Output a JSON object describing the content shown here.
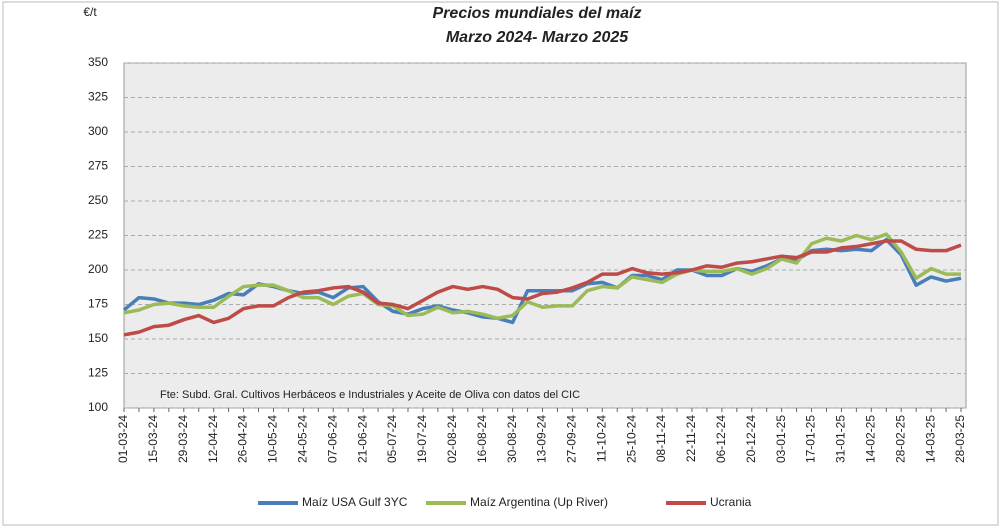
{
  "chart_data": {
    "type": "line",
    "title": "Precios mundiales del maíz",
    "subtitle": "Marzo 2024- Marzo 2025",
    "y_label": "€/t",
    "annotation": "Fte: Subd. Gral. Cultivos Herbáceos e Industriales y Aceite de Oliva con datos del CIC",
    "categories": [
      "01-03-24",
      null,
      "15-03-24",
      null,
      "29-03-24",
      null,
      "12-04-24",
      null,
      "26-04-24",
      null,
      "10-05-24",
      null,
      "24-05-24",
      null,
      "07-06-24",
      null,
      "21-06-24",
      null,
      "05-07-24",
      null,
      "19-07-24",
      null,
      "02-08-24",
      null,
      "16-08-24",
      null,
      "30-08-24",
      null,
      "13-09-24",
      null,
      "27-09-24",
      null,
      "11-10-24",
      null,
      "25-10-24",
      null,
      "08-11-24",
      null,
      "22-11-24",
      null,
      "06-12-24",
      null,
      "20-12-24",
      null,
      "03-01-25",
      null,
      "17-01-25",
      null,
      "31-01-25",
      null,
      "14-02-25",
      null,
      "28-02-25",
      null,
      "14-03-25",
      null,
      "28-03-25"
    ],
    "series": [
      {
        "name": "Maíz USA Gulf 3YC",
        "color": "#4a7ebb",
        "values": [
          171,
          180,
          179,
          176,
          176,
          175,
          178,
          183,
          182,
          190,
          188,
          185,
          183,
          184,
          180,
          187,
          188,
          177,
          170,
          168,
          172,
          174,
          171,
          169,
          166,
          165,
          162,
          185,
          185,
          185,
          185,
          190,
          191,
          187,
          196,
          196,
          193,
          200,
          200,
          196,
          196,
          201,
          199,
          203,
          208,
          207,
          214,
          215,
          214,
          215,
          214,
          222,
          211,
          189,
          195,
          192,
          194
        ]
      },
      {
        "name": "Maíz Argentina (Up River)",
        "color": "#9bbb59",
        "values": [
          169,
          171,
          175,
          176,
          174,
          173,
          173,
          181,
          188,
          189,
          189,
          185,
          180,
          180,
          175,
          181,
          183,
          175,
          174,
          167,
          168,
          173,
          169,
          170,
          168,
          165,
          167,
          177,
          173,
          174,
          174,
          185,
          188,
          187,
          195,
          193,
          191,
          197,
          200,
          199,
          199,
          201,
          197,
          201,
          208,
          205,
          219,
          223,
          221,
          225,
          222,
          226,
          213,
          194,
          201,
          197,
          197
        ]
      },
      {
        "name": "Ucrania",
        "color": "#be4b48",
        "values": [
          153,
          155,
          159,
          160,
          164,
          167,
          162,
          165,
          172,
          174,
          174,
          180,
          184,
          185,
          187,
          188,
          184,
          176,
          175,
          172,
          178,
          184,
          188,
          186,
          188,
          186,
          180,
          179,
          183,
          184,
          187,
          191,
          197,
          197,
          201,
          198,
          197,
          198,
          200,
          203,
          202,
          205,
          206,
          208,
          210,
          209,
          213,
          213,
          216,
          217,
          219,
          221,
          221,
          215,
          214,
          214,
          218
        ]
      }
    ],
    "ylim": [
      100,
      350
    ],
    "yticks": [
      100,
      125,
      150,
      175,
      200,
      225,
      250,
      275,
      300,
      325,
      350
    ],
    "grid": true,
    "legend": "bottom"
  }
}
